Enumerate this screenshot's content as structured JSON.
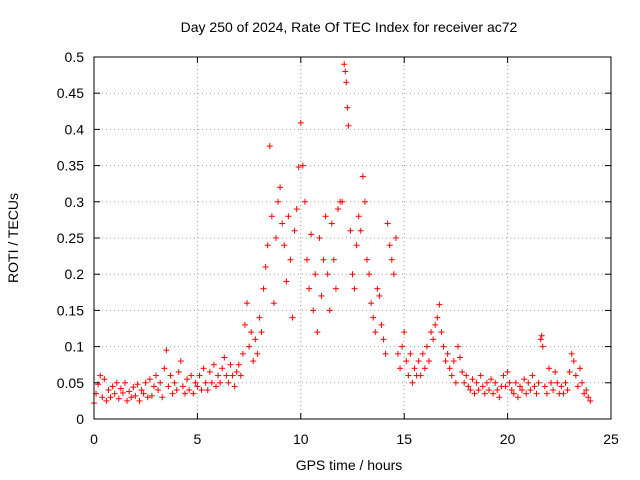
{
  "chart_data": {
    "type": "scatter",
    "title": "Day 250 of 2024, Rate Of TEC Index for receiver ac72",
    "xlabel": "GPS time / hours",
    "ylabel": "ROTI / TECUs",
    "xlim": [
      0,
      25
    ],
    "ylim": [
      0,
      0.5
    ],
    "xticks": [
      "0",
      "5",
      "10",
      "15",
      "20",
      "25"
    ],
    "yticks": [
      "0",
      "0.05",
      "0.1",
      "0.15",
      "0.2",
      "0.25",
      "0.3",
      "0.35",
      "0.4",
      "0.45",
      "0.5"
    ],
    "grid": true,
    "marker": "+",
    "color": "#ff0000",
    "series": [
      {
        "points": [
          [
            0.0,
            0.022
          ],
          [
            0.1,
            0.035
          ],
          [
            0.2,
            0.048
          ],
          [
            0.3,
            0.06
          ],
          [
            0.4,
            0.03
          ],
          [
            0.5,
            0.055
          ],
          [
            0.6,
            0.025
          ],
          [
            0.7,
            0.04
          ],
          [
            0.8,
            0.03
          ],
          [
            0.9,
            0.045
          ],
          [
            1.0,
            0.035
          ],
          [
            1.1,
            0.05
          ],
          [
            1.2,
            0.028
          ],
          [
            1.3,
            0.042
          ],
          [
            1.4,
            0.036
          ],
          [
            1.5,
            0.05
          ],
          [
            1.6,
            0.025
          ],
          [
            1.7,
            0.038
          ],
          [
            1.8,
            0.03
          ],
          [
            1.9,
            0.044
          ],
          [
            2.0,
            0.032
          ],
          [
            2.1,
            0.048
          ],
          [
            2.2,
            0.025
          ],
          [
            2.3,
            0.04
          ],
          [
            2.4,
            0.035
          ],
          [
            2.5,
            0.05
          ],
          [
            2.6,
            0.03
          ],
          [
            2.7,
            0.055
          ],
          [
            2.8,
            0.032
          ],
          [
            2.9,
            0.045
          ],
          [
            3.0,
            0.06
          ],
          [
            3.1,
            0.04
          ],
          [
            3.2,
            0.05
          ],
          [
            3.3,
            0.03
          ],
          [
            3.4,
            0.07
          ],
          [
            3.5,
            0.095
          ],
          [
            3.6,
            0.045
          ],
          [
            3.7,
            0.06
          ],
          [
            3.8,
            0.035
          ],
          [
            3.9,
            0.05
          ],
          [
            4.0,
            0.04
          ],
          [
            4.1,
            0.065
          ],
          [
            4.2,
            0.08
          ],
          [
            4.3,
            0.045
          ],
          [
            4.4,
            0.035
          ],
          [
            4.5,
            0.055
          ],
          [
            4.6,
            0.04
          ],
          [
            4.7,
            0.06
          ],
          [
            4.8,
            0.035
          ],
          [
            4.9,
            0.05
          ],
          [
            5.0,
            0.045
          ],
          [
            5.1,
            0.06
          ],
          [
            5.2,
            0.04
          ],
          [
            5.3,
            0.07
          ],
          [
            5.4,
            0.05
          ],
          [
            5.5,
            0.04
          ],
          [
            5.6,
            0.065
          ],
          [
            5.7,
            0.05
          ],
          [
            5.8,
            0.075
          ],
          [
            5.9,
            0.045
          ],
          [
            6.0,
            0.06
          ],
          [
            6.1,
            0.05
          ],
          [
            6.2,
            0.07
          ],
          [
            6.3,
            0.085
          ],
          [
            6.4,
            0.06
          ],
          [
            6.5,
            0.05
          ],
          [
            6.6,
            0.075
          ],
          [
            6.7,
            0.06
          ],
          [
            6.8,
            0.045
          ],
          [
            6.9,
            0.065
          ],
          [
            7.0,
            0.075
          ],
          [
            7.1,
            0.06
          ],
          [
            7.2,
            0.09
          ],
          [
            7.3,
            0.13
          ],
          [
            7.4,
            0.16
          ],
          [
            7.5,
            0.1
          ],
          [
            7.6,
            0.12
          ],
          [
            7.7,
            0.08
          ],
          [
            7.8,
            0.11
          ],
          [
            7.9,
            0.09
          ],
          [
            8.0,
            0.14
          ],
          [
            8.1,
            0.12
          ],
          [
            8.2,
            0.18
          ],
          [
            8.3,
            0.21
          ],
          [
            8.4,
            0.24
          ],
          [
            8.5,
            0.377
          ],
          [
            8.6,
            0.28
          ],
          [
            8.7,
            0.16
          ],
          [
            8.8,
            0.25
          ],
          [
            8.9,
            0.3
          ],
          [
            9.0,
            0.32
          ],
          [
            9.1,
            0.27
          ],
          [
            9.2,
            0.24
          ],
          [
            9.3,
            0.19
          ],
          [
            9.4,
            0.28
          ],
          [
            9.5,
            0.22
          ],
          [
            9.6,
            0.14
          ],
          [
            9.7,
            0.26
          ],
          [
            9.8,
            0.29
          ],
          [
            9.9,
            0.348
          ],
          [
            10.0,
            0.409
          ],
          [
            10.1,
            0.35
          ],
          [
            10.2,
            0.3
          ],
          [
            10.3,
            0.22
          ],
          [
            10.4,
            0.18
          ],
          [
            10.5,
            0.255
          ],
          [
            10.6,
            0.15
          ],
          [
            10.7,
            0.2
          ],
          [
            10.8,
            0.12
          ],
          [
            10.9,
            0.25
          ],
          [
            11.0,
            0.17
          ],
          [
            11.1,
            0.22
          ],
          [
            11.2,
            0.28
          ],
          [
            11.3,
            0.2
          ],
          [
            11.4,
            0.15
          ],
          [
            11.5,
            0.27
          ],
          [
            11.6,
            0.22
          ],
          [
            11.7,
            0.18
          ],
          [
            11.8,
            0.29
          ],
          [
            11.9,
            0.3
          ],
          [
            12.0,
            0.3
          ],
          [
            12.1,
            0.49
          ],
          [
            12.15,
            0.48
          ],
          [
            12.2,
            0.465
          ],
          [
            12.25,
            0.43
          ],
          [
            12.3,
            0.405
          ],
          [
            12.4,
            0.26
          ],
          [
            12.5,
            0.2
          ],
          [
            12.6,
            0.18
          ],
          [
            12.7,
            0.24
          ],
          [
            12.8,
            0.28
          ],
          [
            12.9,
            0.26
          ],
          [
            13.0,
            0.335
          ],
          [
            13.1,
            0.3
          ],
          [
            13.2,
            0.22
          ],
          [
            13.3,
            0.2
          ],
          [
            13.4,
            0.16
          ],
          [
            13.5,
            0.14
          ],
          [
            13.6,
            0.12
          ],
          [
            13.7,
            0.18
          ],
          [
            13.8,
            0.17
          ],
          [
            13.9,
            0.13
          ],
          [
            14.0,
            0.11
          ],
          [
            14.1,
            0.09
          ],
          [
            14.2,
            0.27
          ],
          [
            14.3,
            0.24
          ],
          [
            14.4,
            0.22
          ],
          [
            14.5,
            0.2
          ],
          [
            14.6,
            0.25
          ],
          [
            14.7,
            0.09
          ],
          [
            14.8,
            0.07
          ],
          [
            14.9,
            0.1
          ],
          [
            15.0,
            0.12
          ],
          [
            15.1,
            0.08
          ],
          [
            15.2,
            0.06
          ],
          [
            15.3,
            0.09
          ],
          [
            15.4,
            0.05
          ],
          [
            15.5,
            0.07
          ],
          [
            15.6,
            0.06
          ],
          [
            15.7,
            0.08
          ],
          [
            15.8,
            0.06
          ],
          [
            15.9,
            0.09
          ],
          [
            16.0,
            0.07
          ],
          [
            16.1,
            0.1
          ],
          [
            16.2,
            0.08
          ],
          [
            16.3,
            0.12
          ],
          [
            16.4,
            0.11
          ],
          [
            16.5,
            0.13
          ],
          [
            16.6,
            0.14
          ],
          [
            16.7,
            0.158
          ],
          [
            16.8,
            0.12
          ],
          [
            16.9,
            0.1
          ],
          [
            17.0,
            0.08
          ],
          [
            17.1,
            0.09
          ],
          [
            17.2,
            0.07
          ],
          [
            17.3,
            0.06
          ],
          [
            17.4,
            0.08
          ],
          [
            17.5,
            0.05
          ],
          [
            17.6,
            0.1
          ],
          [
            17.7,
            0.085
          ],
          [
            17.8,
            0.065
          ],
          [
            17.9,
            0.05
          ],
          [
            18.0,
            0.06
          ],
          [
            18.1,
            0.045
          ],
          [
            18.2,
            0.04
          ],
          [
            18.3,
            0.055
          ],
          [
            18.4,
            0.035
          ],
          [
            18.5,
            0.05
          ],
          [
            18.6,
            0.04
          ],
          [
            18.7,
            0.06
          ],
          [
            18.8,
            0.045
          ],
          [
            18.9,
            0.035
          ],
          [
            19.0,
            0.05
          ],
          [
            19.1,
            0.04
          ],
          [
            19.2,
            0.055
          ],
          [
            19.3,
            0.035
          ],
          [
            19.4,
            0.05
          ],
          [
            19.5,
            0.04
          ],
          [
            19.6,
            0.03
          ],
          [
            19.7,
            0.045
          ],
          [
            19.8,
            0.06
          ],
          [
            19.9,
            0.045
          ],
          [
            20.0,
            0.065
          ],
          [
            20.1,
            0.05
          ],
          [
            20.2,
            0.04
          ],
          [
            20.3,
            0.035
          ],
          [
            20.4,
            0.05
          ],
          [
            20.5,
            0.03
          ],
          [
            20.6,
            0.045
          ],
          [
            20.7,
            0.04
          ],
          [
            20.8,
            0.055
          ],
          [
            20.9,
            0.035
          ],
          [
            21.0,
            0.05
          ],
          [
            21.1,
            0.04
          ],
          [
            21.2,
            0.06
          ],
          [
            21.3,
            0.045
          ],
          [
            21.4,
            0.035
          ],
          [
            21.5,
            0.05
          ],
          [
            21.6,
            0.11
          ],
          [
            21.65,
            0.115
          ],
          [
            21.7,
            0.1
          ],
          [
            21.8,
            0.045
          ],
          [
            21.9,
            0.035
          ],
          [
            22.0,
            0.07
          ],
          [
            22.1,
            0.05
          ],
          [
            22.2,
            0.04
          ],
          [
            22.3,
            0.065
          ],
          [
            22.4,
            0.05
          ],
          [
            22.5,
            0.035
          ],
          [
            22.6,
            0.045
          ],
          [
            22.7,
            0.035
          ],
          [
            22.8,
            0.05
          ],
          [
            22.9,
            0.04
          ],
          [
            23.0,
            0.065
          ],
          [
            23.1,
            0.09
          ],
          [
            23.2,
            0.08
          ],
          [
            23.3,
            0.06
          ],
          [
            23.4,
            0.045
          ],
          [
            23.5,
            0.07
          ],
          [
            23.6,
            0.05
          ],
          [
            23.7,
            0.035
          ],
          [
            23.8,
            0.04
          ],
          [
            23.9,
            0.03
          ],
          [
            24.0,
            0.025
          ]
        ]
      }
    ]
  }
}
